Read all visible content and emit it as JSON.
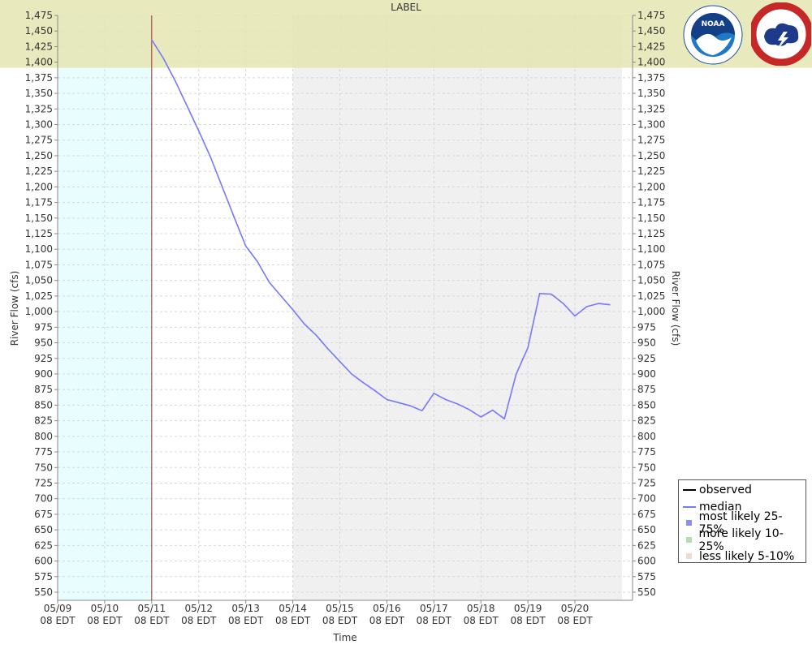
{
  "chart_data": {
    "type": "line",
    "title": "LABEL",
    "ylabel": "River Flow (cfs)",
    "y2label": "River Flow (cfs)",
    "xlabel": "Time",
    "ylim": [
      537,
      1475
    ],
    "ytick_start": 550,
    "ytick_step": 25,
    "x_range_hours": [
      0,
      276
    ],
    "x_ticks": [
      {
        "hour": 0,
        "line1": "05/09",
        "line2": "08 EDT"
      },
      {
        "hour": 24,
        "line1": "05/10",
        "line2": "08 EDT"
      },
      {
        "hour": 48,
        "line1": "05/11",
        "line2": "08 EDT"
      },
      {
        "hour": 72,
        "line1": "05/12",
        "line2": "08 EDT"
      },
      {
        "hour": 96,
        "line1": "05/13",
        "line2": "08 EDT"
      },
      {
        "hour": 120,
        "line1": "05/14",
        "line2": "08 EDT"
      },
      {
        "hour": 144,
        "line1": "05/15",
        "line2": "08 EDT"
      },
      {
        "hour": 168,
        "line1": "05/16",
        "line2": "08 EDT"
      },
      {
        "hour": 192,
        "line1": "05/17",
        "line2": "08 EDT"
      },
      {
        "hour": 216,
        "line1": "05/18",
        "line2": "08 EDT"
      },
      {
        "hour": 240,
        "line1": "05/19",
        "line2": "08 EDT"
      },
      {
        "hour": 264,
        "line1": "05/20",
        "line2": "08 EDT"
      }
    ],
    "regions": [
      {
        "name": "observed-period",
        "from_hour": 0,
        "to_hour": 48,
        "color": "#e8fdfd"
      },
      {
        "name": "later-period",
        "from_hour": 120,
        "to_hour": 288,
        "color": "#f0f0f0"
      },
      {
        "name": "flood-band",
        "from_value": 1391,
        "to_value": 1475,
        "color": "#e5e5b3"
      }
    ],
    "now_marker_hour": 48,
    "series": [
      {
        "name": "median",
        "color": "#7777ff",
        "points": [
          [
            48,
            1436
          ],
          [
            54,
            1406
          ],
          [
            60,
            1370
          ],
          [
            66,
            1330
          ],
          [
            72,
            1290
          ],
          [
            78,
            1248
          ],
          [
            84,
            1200
          ],
          [
            90,
            1152
          ],
          [
            96,
            1105
          ],
          [
            102,
            1080
          ],
          [
            108,
            1047
          ],
          [
            114,
            1025
          ],
          [
            120,
            1003
          ],
          [
            126,
            980
          ],
          [
            132,
            962
          ],
          [
            138,
            940
          ],
          [
            144,
            920
          ],
          [
            150,
            900
          ],
          [
            156,
            886
          ],
          [
            162,
            873
          ],
          [
            168,
            859
          ],
          [
            174,
            854
          ],
          [
            180,
            849
          ],
          [
            186,
            841
          ],
          [
            192,
            869
          ],
          [
            198,
            859
          ],
          [
            204,
            852
          ],
          [
            210,
            843
          ],
          [
            216,
            831
          ],
          [
            222,
            842
          ],
          [
            228,
            828
          ],
          [
            234,
            900
          ],
          [
            240,
            942
          ],
          [
            246,
            1029
          ],
          [
            252,
            1028
          ],
          [
            258,
            1013
          ],
          [
            264,
            993
          ],
          [
            270,
            1008
          ],
          [
            276,
            1013
          ],
          [
            282,
            1011
          ]
        ]
      }
    ],
    "legend": [
      {
        "label": "observed",
        "kind": "line",
        "color": "#000000"
      },
      {
        "label": "median",
        "kind": "line",
        "color": "#7777ff"
      },
      {
        "label": "most likely 25-75%",
        "kind": "box",
        "color": "#8080ff"
      },
      {
        "label": "more likely 10-25%",
        "kind": "box",
        "color": "#a9dca9"
      },
      {
        "label": "less likely 5-10%",
        "kind": "box",
        "color": "#f0d8c8"
      }
    ]
  },
  "logos": {
    "noaa": {
      "text": "NOAA",
      "color": "#1a4f9c"
    },
    "nws": {
      "color": "#c62828"
    }
  }
}
